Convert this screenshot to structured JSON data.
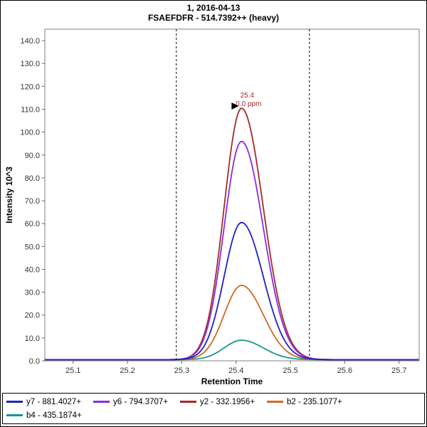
{
  "chart_data": {
    "type": "line",
    "title": "1, 2016-04-13",
    "subtitle": "FSAEFDFR - 514.7392++ (heavy)",
    "xlabel": "Retention Time",
    "ylabel": "Intensity 10^3",
    "xlim": [
      25.048,
      25.737
    ],
    "ylim": [
      0,
      145
    ],
    "x_ticks": [
      "25.1",
      "25.2",
      "25.3",
      "25.4",
      "25.5",
      "25.6",
      "25.7"
    ],
    "y_ticks": [
      "0.0",
      "10.0",
      "20.0",
      "30.0",
      "40.0",
      "50.0",
      "60.0",
      "70.0",
      "80.0",
      "90.0",
      "100.0",
      "110.0",
      "120.0",
      "130.0",
      "140.0"
    ],
    "grid": false,
    "legend_position": "bottom",
    "integration_boundaries": [
      25.29,
      25.535
    ],
    "peak_annotation": {
      "retention_time": "25.4",
      "mass_error": "0.0 ppm",
      "x": 25.41,
      "y": 110,
      "color": "#A52A2A"
    },
    "peak_shape": {
      "center": 25.41,
      "sigma_left": 0.032,
      "sigma_right": 0.04,
      "baseline": 0.5
    },
    "series": [
      {
        "name": "y7 - 881.4027+",
        "color": "#2020C8",
        "apex_y": 60
      },
      {
        "name": "y6 - 794.3707+",
        "color": "#8A2BE2",
        "apex_y": 95.5
      },
      {
        "name": "y2 - 332.1956+",
        "color": "#A52A2A",
        "apex_y": 110
      },
      {
        "name": "b2 - 235.1077+",
        "color": "#D2691E",
        "apex_y": 32.5
      },
      {
        "name": "b4 - 435.1874+",
        "color": "#159889",
        "apex_y": 8.5
      }
    ]
  }
}
